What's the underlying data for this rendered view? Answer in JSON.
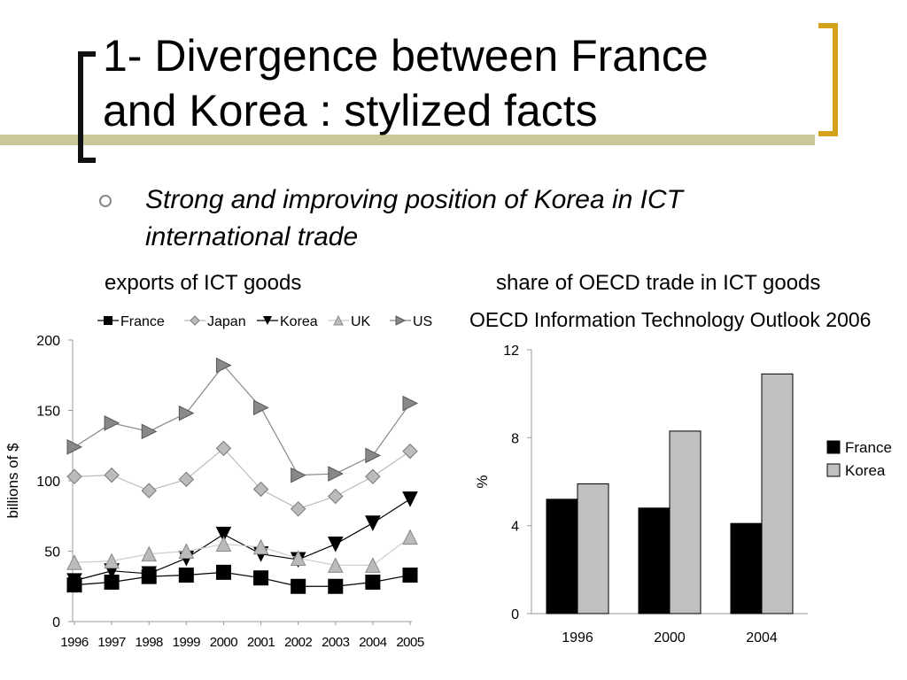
{
  "slide": {
    "title_line1": "1- Divergence between France",
    "title_line2": "and Korea : stylized facts",
    "bullet": "Strong and improving position of Korea in ICT international trade",
    "left_title": "exports of ICT goods",
    "right_title": "share of OECD trade in ICT goods",
    "right_source": "OECD Information Technology Outlook 2006",
    "colors": {
      "bracket_left": "#111111",
      "bracket_right": "#d4a21b",
      "header_bar": "#c8c89a"
    }
  },
  "chart_data": [
    {
      "type": "line",
      "title": "exports of ICT goods",
      "ylabel": "billions of $",
      "xlabel": "",
      "x": [
        "1996",
        "1997",
        "1998",
        "1999",
        "2000",
        "2001",
        "2002",
        "2003",
        "2004",
        "2005"
      ],
      "ylim": [
        0,
        200
      ],
      "yticks": [
        "0",
        "50",
        "100",
        "150",
        "200"
      ],
      "legend_position": "top",
      "series": [
        {
          "name": "France",
          "marker": "square",
          "color": "#000000",
          "values": [
            26,
            28,
            32,
            33,
            35,
            31,
            25,
            25,
            28,
            33
          ]
        },
        {
          "name": "Japan",
          "marker": "diamond",
          "color": "#bbbbbb",
          "values": [
            103,
            104,
            93,
            101,
            123,
            94,
            80,
            89,
            103,
            121
          ]
        },
        {
          "name": "Korea",
          "marker": "triangle-down",
          "color": "#000000",
          "values": [
            29,
            36,
            34,
            45,
            62,
            48,
            44,
            55,
            70,
            87
          ]
        },
        {
          "name": "UK",
          "marker": "triangle-up",
          "color": "#bbbbbb",
          "values": [
            42,
            43,
            48,
            50,
            55,
            53,
            45,
            40,
            40,
            60
          ]
        },
        {
          "name": "US",
          "marker": "triangle-right",
          "color": "#888888",
          "values": [
            124,
            141,
            135,
            148,
            182,
            152,
            104,
            105,
            118,
            155
          ]
        }
      ]
    },
    {
      "type": "bar",
      "title": "share of OECD trade in ICT goods",
      "ylabel": "%",
      "xlabel": "",
      "categories": [
        "1996",
        "2000",
        "2004"
      ],
      "ylim": [
        0,
        12
      ],
      "yticks": [
        "0",
        "4",
        "8",
        "12"
      ],
      "legend_position": "right",
      "series": [
        {
          "name": "France",
          "color": "#000000",
          "values": [
            5.2,
            4.8,
            4.1
          ]
        },
        {
          "name": "Korea",
          "color": "#c0c0c0",
          "values": [
            5.9,
            8.3,
            10.9
          ]
        }
      ]
    }
  ]
}
